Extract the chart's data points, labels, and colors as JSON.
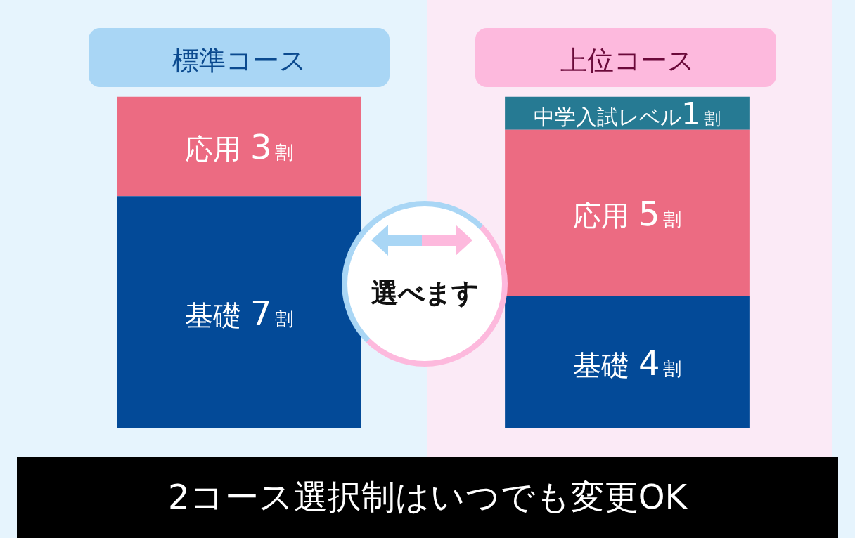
{
  "chart_data": {
    "type": "bar",
    "stacked": true,
    "categories": [
      "標準コース",
      "上位コース"
    ],
    "series": [
      {
        "name": "基礎",
        "color": "#034a98",
        "values": [
          7,
          4
        ],
        "value_labels": [
          "7割",
          "4割"
        ]
      },
      {
        "name": "応用",
        "color": "#ec6b82",
        "values": [
          3,
          5
        ],
        "value_labels": [
          "3割",
          "5割"
        ]
      },
      {
        "name": "中学入試レベル",
        "color": "#267a93",
        "values": [
          null,
          1
        ],
        "value_labels": [
          null,
          "1割"
        ]
      }
    ],
    "ylim": [
      0,
      10
    ],
    "tick_labels": "x",
    "grid": false,
    "legend": false,
    "annotations": [
      "選べます",
      "2コース選択制はいつでも変更OK"
    ]
  }
}
